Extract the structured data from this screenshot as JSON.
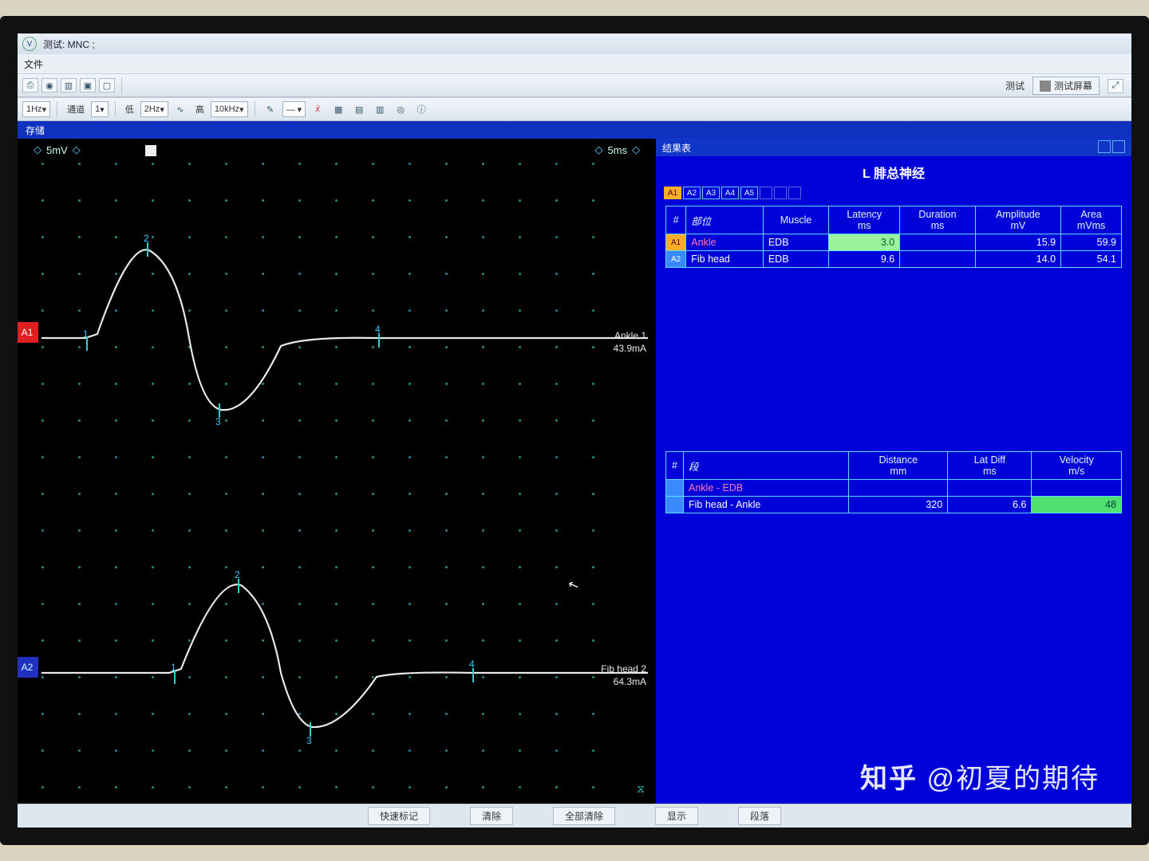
{
  "app": {
    "title_suffix": "测试: MNC ;",
    "menu_file": "文件"
  },
  "toolbar": {
    "freq1_label": "1Hz",
    "channel_label": "通道",
    "channel_val": "1",
    "lo_label": "低",
    "lo_val": "2Hz",
    "hi_label": "高",
    "hi_val": "10kHz",
    "btn_test": "测试",
    "btn_screen": "测试屏幕"
  },
  "bluebar": {
    "store": "存储",
    "results": "结果表"
  },
  "wave": {
    "y_scale": "5mV",
    "x_scale": "5ms",
    "ch": [
      {
        "tag": "A1",
        "label": "Ankle 1",
        "current": "43.9mA"
      },
      {
        "tag": "A2",
        "label": "Fib head 2",
        "current": "64.3mA"
      }
    ],
    "grid": {
      "cols": 16,
      "rows": 18,
      "step": 46
    }
  },
  "results": {
    "header": "结果表",
    "title": "L 腓总神经",
    "atabs": [
      "A1",
      "A2",
      "A3",
      "A4",
      "A5"
    ],
    "table1": {
      "cols": [
        "#",
        "部位",
        "Muscle",
        "Latency\nms",
        "Duration\nms",
        "Amplitude\nmV",
        "Area\nmVms"
      ],
      "rows": [
        {
          "tag": "A1",
          "tag_on": true,
          "site": "Ankle",
          "pink": true,
          "muscle": "EDB",
          "latency": "3.0",
          "lat_hl": true,
          "duration": "",
          "amplitude": "15.9",
          "area": "59.9"
        },
        {
          "tag": "A2",
          "tag_on": false,
          "site": "Fib head",
          "pink": false,
          "muscle": "EDB",
          "latency": "9.6",
          "lat_hl": false,
          "duration": "",
          "amplitude": "14.0",
          "area": "54.1"
        }
      ]
    },
    "table2": {
      "cols": [
        "#",
        "段",
        "Distance\nmm",
        "Lat Diff\nms",
        "Velocity\nm/s"
      ],
      "rows": [
        {
          "seg": "Ankle - EDB",
          "pink": true,
          "dist": "",
          "latdiff": "",
          "vel": "",
          "vel_hl": false
        },
        {
          "seg": "Fib head - Ankle",
          "pink": false,
          "dist": "320",
          "latdiff": "6.6",
          "vel": "48",
          "vel_hl": true
        }
      ]
    }
  },
  "statusbar": {
    "b1": "快速标记",
    "b2": "清除",
    "b3": "全部清除",
    "b4": "显示",
    "b5": "段落"
  },
  "watermark": "知乎 @初夏的期待",
  "colors": {
    "results_bg": "#0000d8",
    "trace": "#e8e8e8",
    "marker": "#30d8d8"
  }
}
